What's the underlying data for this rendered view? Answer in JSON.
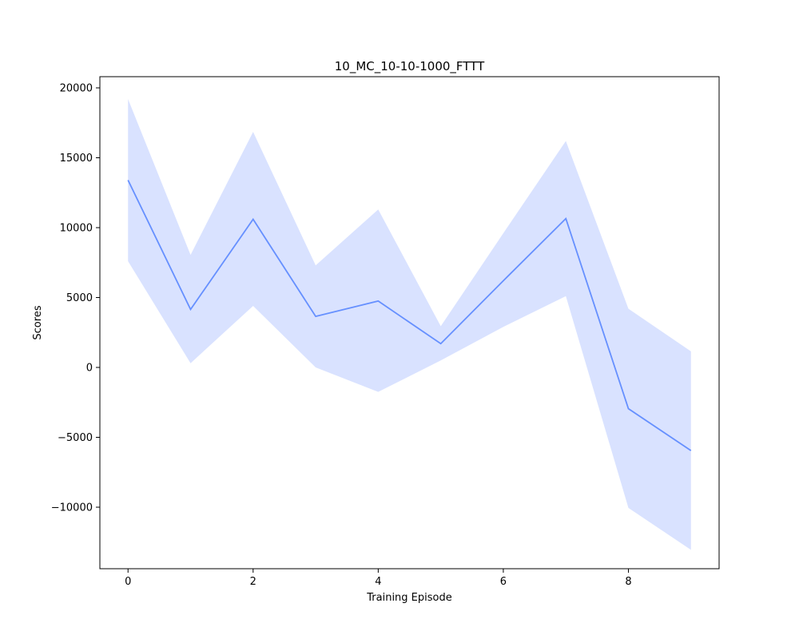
{
  "chart_data": {
    "type": "line",
    "title": "10_MC_10-10-1000_FTTT",
    "xlabel": "Training Episode",
    "ylabel": "Scores",
    "xlim": [
      -0.45,
      9.45
    ],
    "ylim": [
      -14400,
      20800
    ],
    "xticks": [
      0,
      2,
      4,
      6,
      8
    ],
    "yticks": [
      -10000,
      -5000,
      0,
      5000,
      10000,
      15000,
      20000
    ],
    "xtick_labels": [
      "0",
      "2",
      "4",
      "6",
      "8"
    ],
    "ytick_labels": [
      "−10000",
      "−5000",
      "0",
      "5000",
      "10000",
      "15000",
      "20000"
    ],
    "grid": false,
    "series": [
      {
        "x": [
          0,
          1,
          2,
          3,
          4,
          5,
          6,
          7,
          8,
          9
        ],
        "values": [
          13400,
          4150,
          10600,
          3650,
          4750,
          1700,
          6200,
          10650,
          -2950,
          -5950
        ],
        "upper": [
          19200,
          8050,
          16850,
          7300,
          11300,
          2950,
          9600,
          16200,
          4200,
          1150
        ],
        "lower": [
          7600,
          300,
          4400,
          0,
          -1750,
          500,
          2900,
          5100,
          -10050,
          -13050
        ],
        "color": "#6690ff",
        "band_color": "#d9e2ff"
      }
    ]
  }
}
